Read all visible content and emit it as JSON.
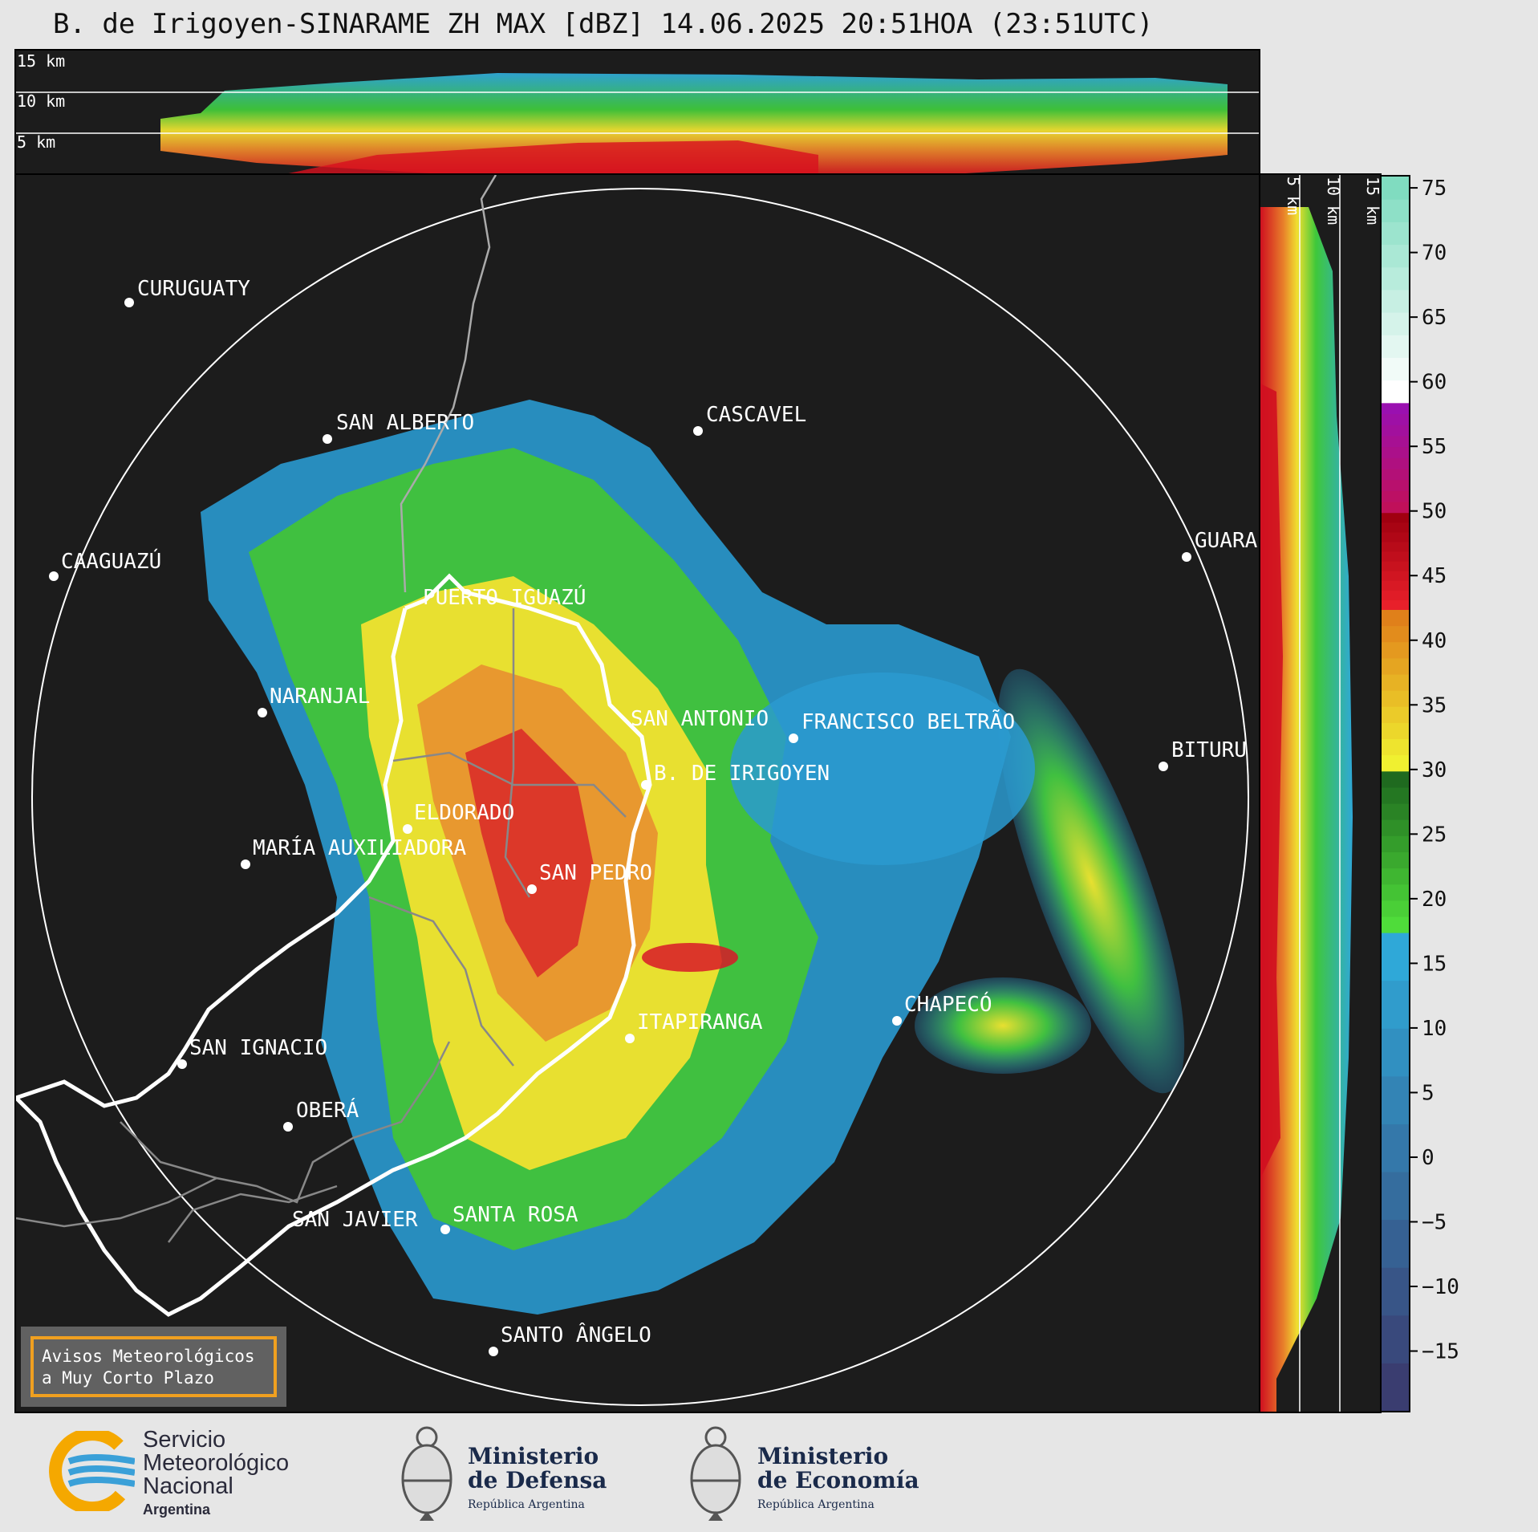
{
  "title": "B. de Irigoyen-SINARAME ZH MAX [dBZ] 14.06.2025 20:51HOA (23:51UTC)",
  "top_panel": {
    "height_labels": [
      "15 km",
      "10 km",
      "5 km"
    ]
  },
  "side_panel": {
    "height_labels": [
      "5 km",
      "10 km",
      "15 km"
    ]
  },
  "colorbar": {
    "unit": "dBZ",
    "ticks": [
      "75",
      "70",
      "65",
      "60",
      "55",
      "50",
      "45",
      "40",
      "35",
      "30",
      "25",
      "20",
      "15",
      "10",
      "5",
      "0",
      "−5",
      "−10",
      "−15"
    ],
    "tick_values": [
      75,
      70,
      65,
      60,
      55,
      50,
      45,
      40,
      35,
      30,
      25,
      20,
      15,
      10,
      5,
      0,
      -5,
      -10,
      -15
    ],
    "range": [
      -19.5,
      76
    ],
    "bands": [
      {
        "from": -19.5,
        "to": 17.5,
        "color_from": "#3a3d70",
        "color_to": "#2fa8d8"
      },
      {
        "from": 17.5,
        "to": 30,
        "color_from": "#4fdc3a",
        "color_to": "#1f6a1f"
      },
      {
        "from": 30,
        "to": 42.5,
        "color_from": "#f0f030",
        "color_to": "#e0801a"
      },
      {
        "from": 42.5,
        "to": 50,
        "color_from": "#e8202a",
        "color_to": "#a00010"
      },
      {
        "from": 50,
        "to": 58.5,
        "color_from": "#c0105a",
        "color_to": "#9a10b0"
      },
      {
        "from": 58.5,
        "to": 76,
        "color_from": "#ffffff",
        "color_to": "#80dcc0"
      }
    ]
  },
  "cities": [
    {
      "name": "CURUGUATY"
    },
    {
      "name": "SAN ALBERTO"
    },
    {
      "name": "CASCAVEL"
    },
    {
      "name": "CAAGUAZÚ"
    },
    {
      "name": "GUARA"
    },
    {
      "name": "PUERTO IGUAZÚ"
    },
    {
      "name": "NARANJAL"
    },
    {
      "name": "SAN ANTONIO"
    },
    {
      "name": "FRANCISCO BELTRÃO"
    },
    {
      "name": "B. DE IRIGOYEN"
    },
    {
      "name": "BITURU"
    },
    {
      "name": "ELDORADO"
    },
    {
      "name": "MARÍA AUXILIADORA"
    },
    {
      "name": "SAN PEDRO"
    },
    {
      "name": "CHAPECÓ"
    },
    {
      "name": "ITAPIRANGA"
    },
    {
      "name": "SAN IGNACIO"
    },
    {
      "name": "OBERÁ"
    },
    {
      "name": "SAN JAVIER"
    },
    {
      "name": "SANTA ROSA"
    },
    {
      "name": "SANTO ÂNGELO"
    }
  ],
  "warning": {
    "line1": "Avisos Meteorológicos",
    "line2": "a Muy Corto Plazo"
  },
  "footer": {
    "smn": {
      "line1": "Servicio",
      "line2": "Meteorológico",
      "line3": "Nacional",
      "line4": "Argentina"
    },
    "defensa": {
      "line1": "Ministerio",
      "line2": "de Defensa",
      "line3": "República Argentina"
    },
    "economia": {
      "line1": "Ministerio",
      "line2": "de Economía",
      "line3": "República Argentina"
    }
  },
  "colors": {
    "panel_bg": "#1c1c1c",
    "range_ring": "#ffffff",
    "border_white": "#ffffff",
    "border_grey": "#888888",
    "warning_border": "#f0a020",
    "smn_orange": "#f5a800",
    "smn_blue": "#3aa0d8"
  }
}
